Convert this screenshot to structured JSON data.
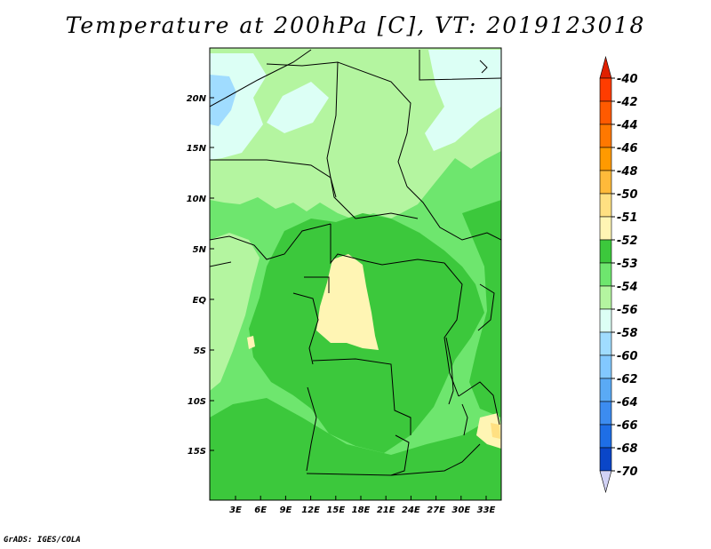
{
  "title": "Temperature at 200hPa [C], VT: 2019123018",
  "credit": "GrADS: IGES/COLA",
  "map": {
    "lat_labels": [
      "20N",
      "15N",
      "10N",
      "5N",
      "EQ",
      "5S",
      "10S",
      "15S"
    ],
    "lon_labels": [
      "3E",
      "6E",
      "9E",
      "12E",
      "15E",
      "18E",
      "21E",
      "24E",
      "27E",
      "30E",
      "33E"
    ]
  },
  "colorbar": {
    "labels": [
      "-40",
      "-42",
      "-44",
      "-46",
      "-48",
      "-50",
      "-51",
      "-52",
      "-53",
      "-54",
      "-56",
      "-58",
      "-60",
      "-62",
      "-64",
      "-66",
      "-68",
      "-70"
    ],
    "colors": [
      "#ff3c00",
      "#ff5a00",
      "#ff7800",
      "#ff9a00",
      "#ffba3a",
      "#ffe082",
      "#fff5b4",
      "#3cc83c",
      "#6ee66e",
      "#b4f5a0",
      "#dcfff5",
      "#a0dcff",
      "#82c8ff",
      "#5aaaf5",
      "#3c8cf0",
      "#1e6ee6",
      "#0a46c8",
      "#0a1e6e"
    ],
    "top_color": "#e02000",
    "bottom_color": "#d2d2f5"
  },
  "field_colors": {
    "c52": "#3cc83c",
    "c53": "#6ee66e",
    "c54": "#b4f5a0",
    "c56": "#dcfff5",
    "c58": "#a0dcff",
    "c51": "#fff5b4",
    "c50": "#ffe082"
  }
}
